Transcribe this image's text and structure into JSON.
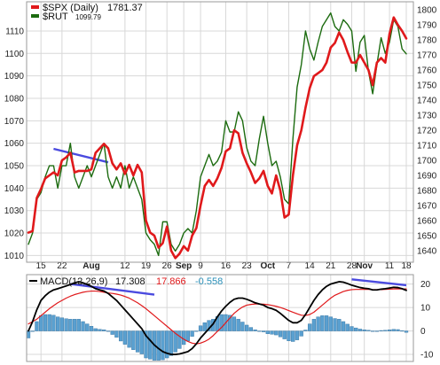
{
  "colors": {
    "spx": "#e0191b",
    "rut": "#1c6b0f",
    "macd_line": "#000000",
    "signal_line": "#e0191b",
    "histogram": "#5aa0d0",
    "histogram_edge": "#2f6f9f",
    "trendline": "#4a4adf",
    "hist_label": "#2a8fb8",
    "grid": "#d8d8d8"
  },
  "chart_data": [
    {
      "type": "line",
      "legend": {
        "placement": "top-left",
        "items": [
          {
            "name": "$SPX (Daily)",
            "value": "1781.37",
            "color": "#e0191b"
          },
          {
            "name": "$RUT",
            "value": "1099.79",
            "color": "#1c6b0f"
          }
        ]
      },
      "x_tick_labels": [
        "15",
        "22",
        "Aug",
        "12",
        "19",
        "26",
        "Sep",
        "9",
        "16",
        "23",
        "Oct",
        "7",
        "14",
        "21",
        "28",
        "Nov",
        "11",
        "18"
      ],
      "y_left": {
        "ticks": [
          1010,
          1020,
          1030,
          1040,
          1050,
          1060,
          1070,
          1080,
          1090,
          1100,
          1110
        ],
        "lim": [
          1007,
          1123
        ]
      },
      "y_right": {
        "ticks": [
          1640,
          1650,
          1660,
          1670,
          1680,
          1690,
          1700,
          1710,
          1720,
          1730,
          1740,
          1750,
          1760,
          1770,
          1780,
          1790,
          1800
        ],
        "lim": [
          1632.3,
          1805.4
        ]
      },
      "grid": true,
      "series": [
        {
          "name": "$SPX",
          "axis": "right",
          "values": [
            1652,
            1653,
            1675,
            1681,
            1688,
            1690,
            1692,
            1690,
            1700,
            1702,
            1705,
            1692,
            1693,
            1693,
            1693,
            1694,
            1705,
            1708,
            1711,
            1708,
            1698,
            1694,
            1698,
            1691,
            1697,
            1690,
            1697,
            1692,
            1660,
            1652,
            1650,
            1642,
            1645,
            1656,
            1640,
            1635,
            1638,
            1643,
            1640,
            1650,
            1655,
            1670,
            1683,
            1687,
            1683,
            1688,
            1695,
            1706,
            1708,
            1720,
            1718,
            1705,
            1698,
            1692,
            1685,
            1688,
            1693,
            1683,
            1678,
            1690,
            1680,
            1662,
            1664,
            1690,
            1710,
            1720,
            1735,
            1748,
            1756,
            1758,
            1760,
            1765,
            1775,
            1778,
            1785,
            1780,
            1772,
            1765,
            1765,
            1770,
            1765,
            1760,
            1750,
            1765,
            1768,
            1765,
            1784,
            1795,
            1790,
            1786,
            1781
          ]
        },
        {
          "name": "$RUT",
          "axis": "left",
          "values": [
            1015,
            1020,
            1035,
            1038,
            1045,
            1050,
            1050,
            1040,
            1050,
            1050,
            1060,
            1045,
            1040,
            1045,
            1050,
            1045,
            1050,
            1055,
            1060,
            1045,
            1040,
            1045,
            1040,
            1050,
            1040,
            1045,
            1040,
            1035,
            1020,
            1017,
            1015,
            1010,
            1025,
            1025,
            1015,
            1012,
            1015,
            1020,
            1022,
            1020,
            1030,
            1045,
            1050,
            1055,
            1050,
            1052,
            1056,
            1070,
            1065,
            1065,
            1074,
            1070,
            1058,
            1052,
            1050,
            1062,
            1072,
            1060,
            1050,
            1052,
            1045,
            1035,
            1033,
            1062,
            1085,
            1095,
            1110,
            1102,
            1097,
            1105,
            1112,
            1115,
            1118,
            1112,
            1110,
            1115,
            1113,
            1110,
            1092,
            1105,
            1108,
            1092,
            1082,
            1095,
            1107,
            1100,
            1105,
            1115,
            1112,
            1102,
            1099.79
          ]
        }
      ]
    },
    {
      "type": "line",
      "legend": {
        "placement": "top-left",
        "label": "MACD(12,26,9)",
        "values": [
          "17.308",
          "17.866",
          "-0.558"
        ]
      },
      "y": {
        "ticks": [
          -10,
          0,
          10,
          20
        ],
        "lim": [
          -13,
          24
        ]
      },
      "grid": true,
      "series": [
        {
          "name": "MACD",
          "values": [
            0,
            4,
            9,
            13,
            15,
            16.5,
            17.5,
            18,
            18.6,
            19.2,
            19.8,
            20.5,
            21,
            20.5,
            19.8,
            19,
            18,
            17.5,
            17,
            16,
            14.5,
            13,
            11,
            9,
            7,
            5,
            3,
            1,
            -2,
            -4,
            -6,
            -7.5,
            -8.8,
            -9.5,
            -10,
            -10,
            -9.8,
            -9.3,
            -8.8,
            -7.5,
            -5.5,
            -3,
            -1,
            1,
            3,
            6,
            8.5,
            10.5,
            12.2,
            13.5,
            14,
            14,
            13.5,
            12.8,
            12,
            11.5,
            11,
            10,
            9.5,
            8.8,
            7.5,
            6,
            4.5,
            3.5,
            3.5,
            4.5,
            7,
            10,
            13,
            15.5,
            17.5,
            19,
            20,
            20.5,
            21,
            20.8,
            20.2,
            19.5,
            19,
            18.5,
            18.2,
            18,
            17.5,
            17.5,
            17.8,
            18,
            18.3,
            18.6,
            18.5,
            18,
            17.3
          ]
        },
        {
          "name": "Signal",
          "values": [
            3,
            4,
            5,
            6.5,
            8,
            9.5,
            10.8,
            12,
            13,
            14,
            14.8,
            15.5,
            16,
            16.5,
            16.8,
            17,
            17,
            16.8,
            16.5,
            16.2,
            16,
            15.7,
            15.3,
            14.7,
            14,
            13,
            12,
            10.8,
            9.5,
            8,
            6.5,
            5,
            3.5,
            2,
            0.5,
            -1,
            -2.3,
            -3.5,
            -4.5,
            -5.2,
            -5.5,
            -5.2,
            -4.5,
            -3.5,
            -2,
            -0.2,
            1.5,
            3.5,
            5.5,
            7.5,
            9,
            10.2,
            11,
            11.3,
            11.5,
            11.5,
            11.4,
            11.2,
            10.9,
            10.5,
            10,
            9.4,
            8.7,
            8,
            7.3,
            6.7,
            6.6,
            7,
            8,
            9.5,
            11,
            12.5,
            14,
            15.2,
            16,
            16.8,
            17.3,
            17.6,
            17.7,
            17.7,
            17.7,
            17.7,
            17.6,
            17.6,
            17.6,
            17.7,
            17.8,
            17.9,
            17.9,
            17.9,
            17.9
          ]
        },
        {
          "name": "Histogram",
          "type": "bar",
          "values": [
            -3,
            0,
            4,
            6.5,
            7,
            7,
            6.7,
            6,
            5.6,
            5.2,
            5,
            5,
            5,
            4,
            3,
            2,
            1,
            0.7,
            0.5,
            -0.2,
            -1.5,
            -2.7,
            -4.3,
            -5.7,
            -7,
            -8,
            -9,
            -9.8,
            -11.5,
            -12,
            -12.5,
            -12.5,
            -12.3,
            -11.5,
            -10.5,
            -9,
            -7.5,
            -5.8,
            -4.3,
            -2.3,
            0,
            2.2,
            3.5,
            4.5,
            5,
            6.2,
            7,
            7,
            6.7,
            6,
            5,
            3.8,
            2.5,
            1.5,
            0.5,
            0,
            -0.4,
            -1.2,
            -1.4,
            -1.7,
            -2.5,
            -3.4,
            -4.2,
            -4.5,
            -3.8,
            -2.2,
            0.4,
            3,
            5,
            6,
            6.5,
            6.5,
            6,
            5.3,
            5,
            4,
            2.9,
            1.9,
            1.3,
            0.8,
            0.5,
            0.3,
            -0.1,
            -0.1,
            0.2,
            0.3,
            0.5,
            0.7,
            0.6,
            0.1,
            -0.6
          ]
        }
      ]
    }
  ]
}
